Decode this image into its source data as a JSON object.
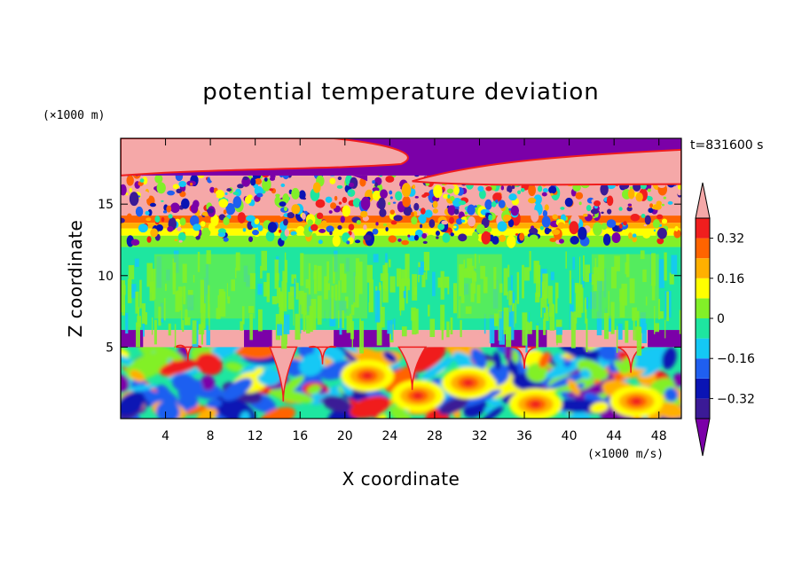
{
  "chart_data": {
    "type": "heatmap",
    "title": "potential temperature deviation",
    "xlabel": "X coordinate",
    "ylabel": "Z coordinate",
    "x_unit": "(×1000 m/s)",
    "y_unit": "(×1000 m)",
    "time_label": "t=831600 s",
    "xlim": [
      0,
      50
    ],
    "ylim": [
      0,
      19.6
    ],
    "x_ticks": [
      4,
      8,
      12,
      16,
      20,
      24,
      28,
      32,
      36,
      40,
      44,
      48
    ],
    "y_ticks": [
      5,
      10,
      15
    ],
    "colorbar": {
      "levels": [
        -0.4,
        -0.32,
        -0.24,
        -0.16,
        -0.08,
        0,
        0.08,
        0.16,
        0.24,
        0.32,
        0.4
      ],
      "tick_values": [
        -0.32,
        -0.16,
        0,
        0.16,
        0.32
      ],
      "tick_labels": [
        "−0.32",
        "−0.16",
        "0",
        "0.16",
        "0.32"
      ],
      "colors": [
        "#7b00a8",
        "#3b1a96",
        "#0a14b4",
        "#1f5ff0",
        "#14c8f5",
        "#1ee6a0",
        "#82f028",
        "#ffff00",
        "#ffb000",
        "#ff6400",
        "#f01e1e",
        "#f5a8a8"
      ],
      "extend": "both"
    },
    "layers": [
      {
        "z": [
          0.0,
          5.0
        ],
        "value": "mixed",
        "desc_values": [
          -0.4,
          0.3
        ]
      },
      {
        "z": [
          5.0,
          6.2
        ],
        "value": 0.4
      },
      {
        "z": [
          6.2,
          12.0
        ],
        "value": 0.0
      },
      {
        "z": [
          12.0,
          13.5
        ],
        "value": 0.12
      },
      {
        "z": [
          13.5,
          17.0
        ],
        "value": "mixed"
      },
      {
        "z": [
          17.0,
          19.6
        ],
        "value": "mixed",
        "desc_values": [
          -0.4,
          0.4
        ]
      }
    ]
  }
}
